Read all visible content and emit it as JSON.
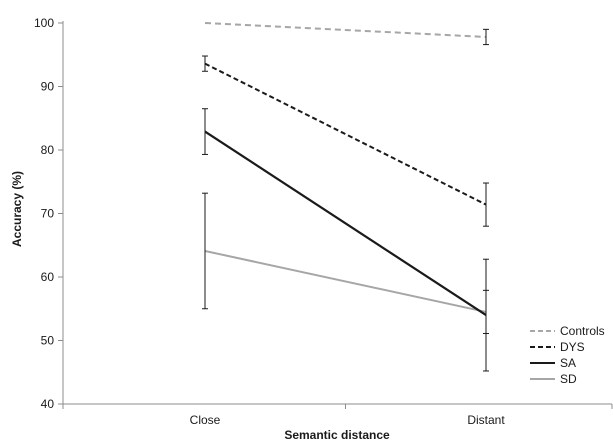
{
  "chart_data": {
    "type": "line",
    "title": "",
    "xlabel": "Semantic distance",
    "ylabel": "Accuracy (%)",
    "categories": [
      "Close",
      "Distant"
    ],
    "ylim": [
      40,
      100
    ],
    "yticks": [
      40,
      50,
      60,
      70,
      80,
      90,
      100
    ],
    "grid": false,
    "legend_position": "bottom-right",
    "series": [
      {
        "name": "Controls",
        "values": [
          100,
          97.8
        ],
        "error": [
          null,
          1.2
        ],
        "color": "#a6a6a6",
        "dash": "dashed"
      },
      {
        "name": "DYS",
        "values": [
          93.6,
          71.4
        ],
        "error": [
          1.2,
          3.4
        ],
        "color": "#1a1a1a",
        "dash": "dashed"
      },
      {
        "name": "SA",
        "values": [
          82.9,
          54.0
        ],
        "error": [
          3.6,
          8.8
        ],
        "color": "#1a1a1a",
        "dash": "solid"
      },
      {
        "name": "SD",
        "values": [
          64.1,
          54.5
        ],
        "error": [
          9.1,
          3.4
        ],
        "color": "#a6a6a6",
        "dash": "solid"
      }
    ]
  }
}
